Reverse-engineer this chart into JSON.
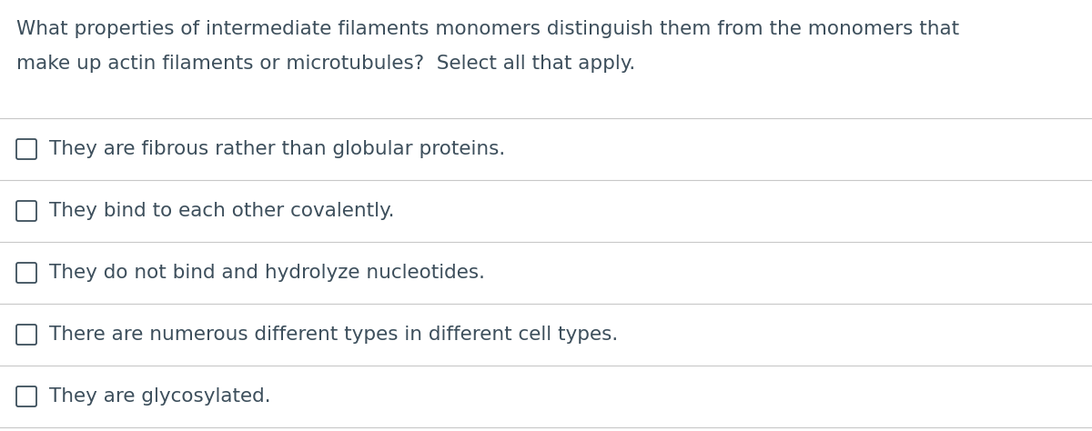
{
  "background_color": "#ffffff",
  "text_color": "#3d4f5c",
  "line_color": "#c8c8c8",
  "question_line1": "What properties of intermediate filaments monomers distinguish them from the monomers that",
  "question_line2": "make up actin filaments or microtubules?  Select all that apply.",
  "choices": [
    "They are fibrous rather than globular proteins.",
    "They bind to each other covalently.",
    "They do not bind and hydrolyze nucleotides.",
    "There are numerous different types in different cell types.",
    "They are glycosylated."
  ],
  "question_fontsize": 15.5,
  "choice_fontsize": 15.5,
  "checkbox_color": "#ffffff",
  "checkbox_edge_color": "#3d4f5c",
  "fig_width": 12.0,
  "fig_height": 4.74,
  "dpi": 100
}
